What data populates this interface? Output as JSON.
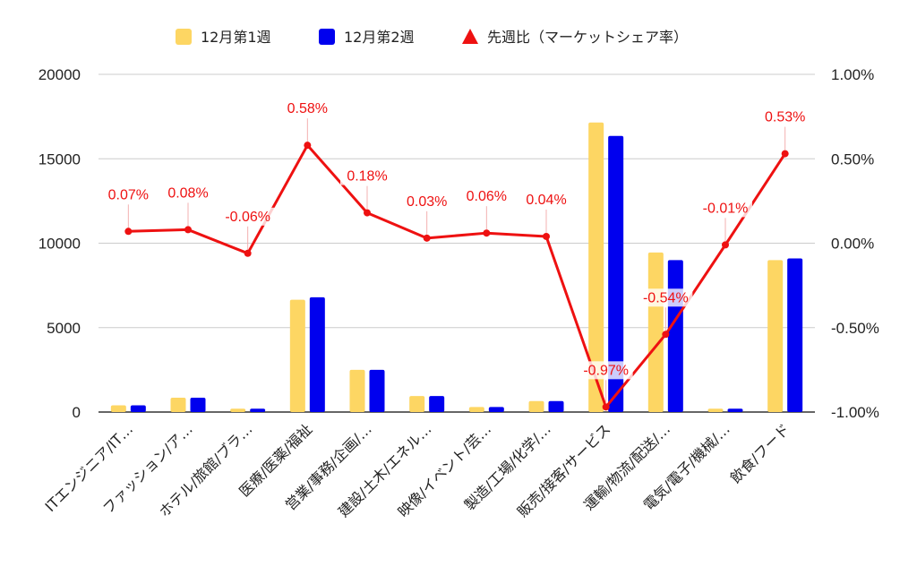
{
  "chart_data": {
    "type": "bar",
    "categories": [
      "ITエンジニア/IT…",
      "ファッション/ア…",
      "ホテル/旅館/ブラ…",
      "医療/医薬/福祉",
      "営業/事務/企画/…",
      "建設/土木/エネル…",
      "映像/イベント/芸…",
      "製造/工場/化学/…",
      "販売/接客/サービス",
      "運輸/物流/配送/…",
      "電気/電子/機械/…",
      "飲食/フード"
    ],
    "series": [
      {
        "name": "12月第1週",
        "type": "bar",
        "axis": "left",
        "values": [
          400,
          850,
          200,
          6650,
          2500,
          950,
          300,
          650,
          17150,
          9450,
          200,
          9000
        ]
      },
      {
        "name": "12月第2週",
        "type": "bar",
        "axis": "left",
        "values": [
          400,
          850,
          200,
          6800,
          2500,
          950,
          300,
          650,
          16350,
          9000,
          200,
          9100
        ]
      },
      {
        "name": "先週比（マーケットシェア率）",
        "type": "line",
        "axis": "right",
        "values": [
          0.07,
          0.08,
          -0.06,
          0.58,
          0.18,
          0.03,
          0.06,
          0.04,
          -0.97,
          -0.54,
          -0.01,
          0.53
        ],
        "labels": [
          "0.07%",
          "0.08%",
          "-0.06%",
          "0.58%",
          "0.18%",
          "0.03%",
          "0.06%",
          "0.04%",
          "-0.97%",
          "-0.54%",
          "-0.01%",
          "0.53%"
        ]
      }
    ],
    "y_left": {
      "ylim": [
        0,
        20000
      ],
      "ticks": [
        "0",
        "5000",
        "10000",
        "15000",
        "20000"
      ]
    },
    "y_right": {
      "ylim": [
        -1.0,
        1.0
      ],
      "ticks": [
        "-1.00%",
        "-0.50%",
        "0.00%",
        "0.50%",
        "1.00%"
      ]
    },
    "legend_position": "top",
    "grid": true,
    "colors": {
      "week1": "#fdd663",
      "week2": "#0000ee",
      "ratio": "#ee1111",
      "grid": "#cccccc",
      "axis": "#333333"
    }
  }
}
